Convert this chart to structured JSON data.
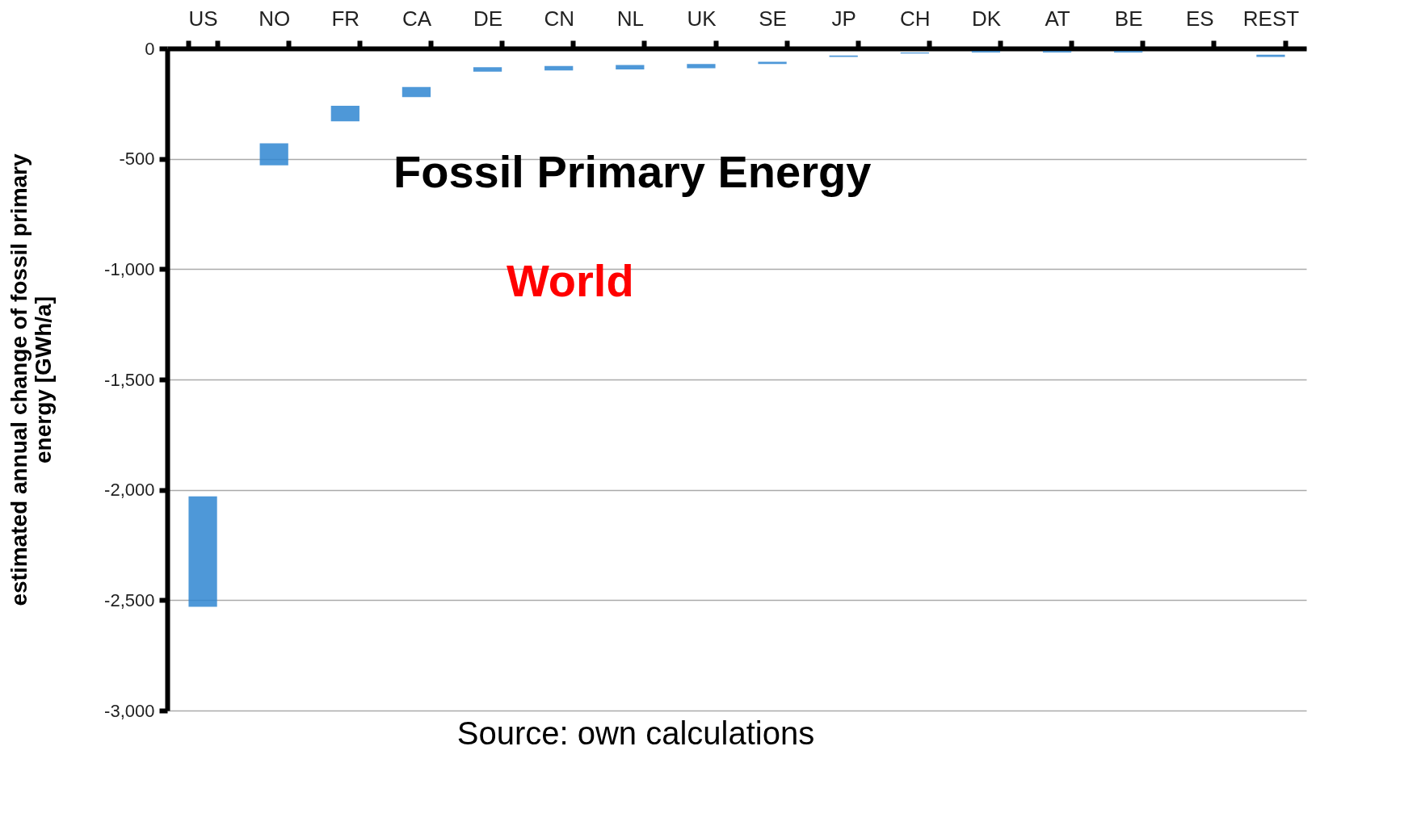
{
  "chart_data": {
    "type": "bar",
    "title": "Fossil Primary Energy",
    "subtitle": "World",
    "ylabel": "estimated annual change of fossil primary energy [GWh/a]",
    "categories": [
      "US",
      "NO",
      "FR",
      "CA",
      "DE",
      "CN",
      "NL",
      "UK",
      "SE",
      "JP",
      "CH",
      "DK",
      "AT",
      "BE",
      "ES",
      "REST"
    ],
    "base": [
      -2030,
      -430,
      -260,
      -175,
      -85,
      -80,
      -75,
      -70,
      -60,
      -32,
      -18,
      -12,
      -12,
      -12,
      null,
      -28
    ],
    "values": [
      -500,
      -100,
      -70,
      -45,
      -20,
      -20,
      -20,
      -20,
      -10,
      -6,
      -5,
      -6,
      -6,
      -6,
      null,
      -10
    ],
    "color": "#2f86d1",
    "ylim": [
      -3000,
      0
    ],
    "yticks": [
      {
        "value": 0,
        "label": "0"
      },
      {
        "value": -500,
        "label": "-500"
      },
      {
        "value": -1000,
        "label": "-1,000"
      },
      {
        "value": -1500,
        "label": "-1,500"
      },
      {
        "value": -2000,
        "label": "-2,000"
      },
      {
        "value": -2500,
        "label": "-2,500"
      },
      {
        "value": -3000,
        "label": "-3,000"
      }
    ],
    "grid": "y",
    "annotations": [
      "Source: own calculations"
    ]
  }
}
